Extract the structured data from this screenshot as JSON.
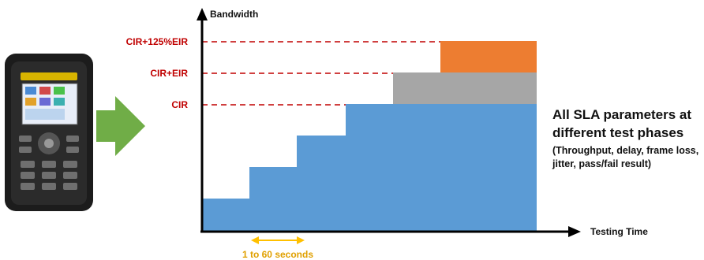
{
  "y_axis_label": "Bandwidth",
  "x_axis_label": "Testing Time",
  "level_labels": {
    "cir_125_eir": "CIR+125%EIR",
    "cir_eir": "CIR+EIR",
    "cir": "CIR"
  },
  "step_interval_label": "1 to 60 seconds",
  "caption": {
    "title": "All SLA parameters at different test phases",
    "subtitle": "(Throughput, delay, frame loss, jitter, pass/fail result)"
  },
  "colors": {
    "steps_fill": "#5b9bd5",
    "eir_block": "#a6a6a6",
    "overshoot_block": "#ed7d31",
    "dashed_levels": "#c00000",
    "level_text": "#c00000",
    "interval_arrow": "#ffc000",
    "interval_text": "#e0a000",
    "big_arrow": "#70ad47",
    "axes": "#000000"
  },
  "icons": {
    "device": "handheld-tester-icon",
    "arrow": "green-arrow-icon"
  }
}
